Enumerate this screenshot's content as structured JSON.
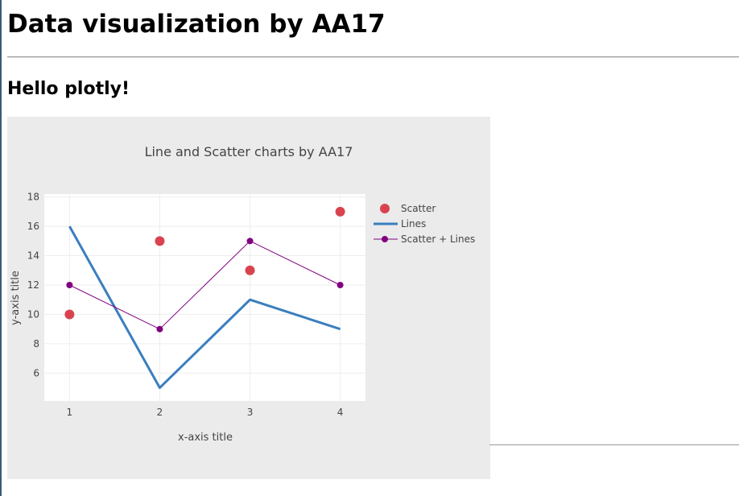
{
  "page": {
    "title": "Data visualization by AA17",
    "subtitle": "Hello plotly!"
  },
  "chart_data": {
    "type": "line",
    "title": "Line and Scatter charts by AA17",
    "xlabel": "x-axis title",
    "ylabel": "y-axis title",
    "xticks": [
      "1",
      "2",
      "3",
      "4"
    ],
    "yticks": [
      "6",
      "8",
      "10",
      "12",
      "14",
      "16",
      "18"
    ],
    "xlim": [
      0.72,
      4.28
    ],
    "ylim": [
      4.1,
      18.2
    ],
    "grid": true,
    "legend_position": "top-right",
    "series": [
      {
        "name": "Scatter",
        "mode": "markers",
        "color": "#d9434f",
        "x": [
          1,
          2,
          3,
          4
        ],
        "y": [
          10,
          15,
          13,
          17
        ]
      },
      {
        "name": "Lines",
        "mode": "lines",
        "color": "#3a7ebf",
        "x": [
          1,
          2,
          3,
          4
        ],
        "y": [
          16,
          5,
          11,
          9
        ]
      },
      {
        "name": "Scatter + Lines",
        "mode": "lines+markers",
        "color": "#800080",
        "x": [
          1,
          2,
          3,
          4
        ],
        "y": [
          12,
          9,
          15,
          12
        ]
      }
    ]
  }
}
